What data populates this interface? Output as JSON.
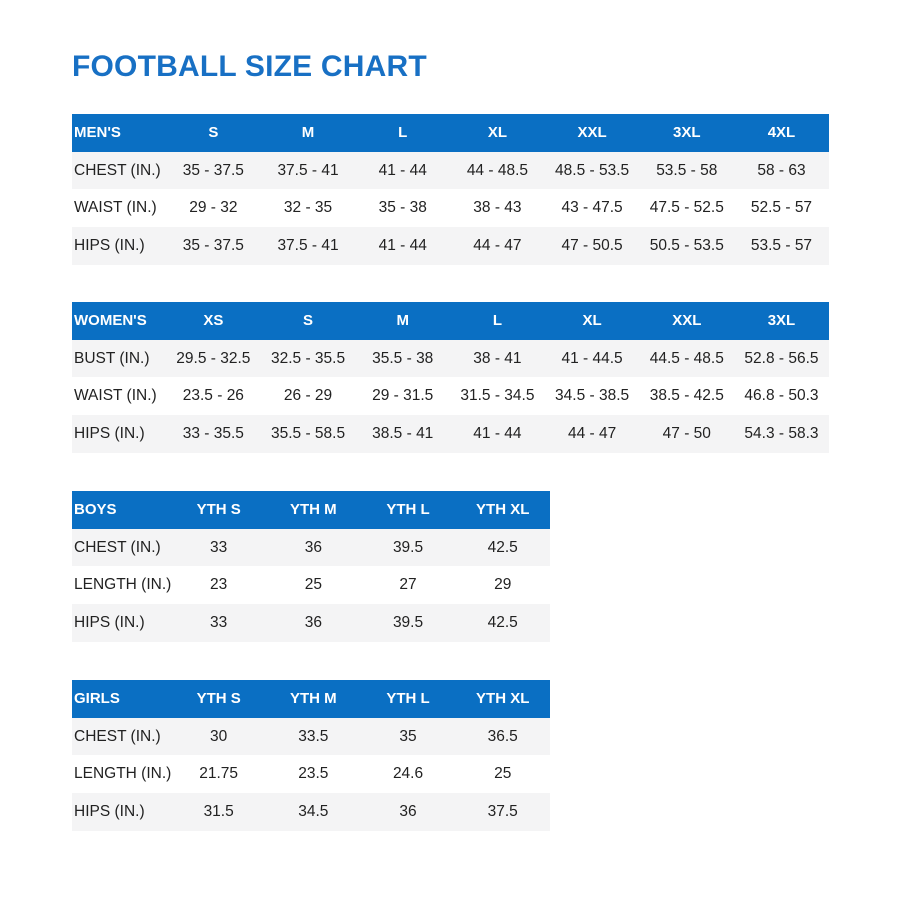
{
  "title": "FOOTBALL SIZE CHART",
  "colors": {
    "header_bg": "#0a6fc3",
    "title": "#1870c4",
    "row_shade": "#f4f4f5"
  },
  "tables": [
    {
      "header": [
        "MEN'S",
        "S",
        "M",
        "L",
        "XL",
        "XXL",
        "3XL",
        "4XL"
      ],
      "rows": [
        [
          "CHEST (IN.)",
          "35 - 37.5",
          "37.5 - 41",
          "41 - 44",
          "44 - 48.5",
          "48.5 - 53.5",
          "53.5 - 58",
          "58 - 63"
        ],
        [
          "WAIST (IN.)",
          "29 - 32",
          "32 - 35",
          "35 - 38",
          "38 - 43",
          "43 - 47.5",
          "47.5 - 52.5",
          "52.5 - 57"
        ],
        [
          "HIPS (IN.)",
          "35 - 37.5",
          "37.5 - 41",
          "41 - 44",
          "44 - 47",
          "47 - 50.5",
          "50.5 - 53.5",
          "53.5 - 57"
        ]
      ]
    },
    {
      "header": [
        "WOMEN'S",
        "XS",
        "S",
        "M",
        "L",
        "XL",
        "XXL",
        "3XL"
      ],
      "rows": [
        [
          "BUST (IN.)",
          "29.5 - 32.5",
          "32.5 - 35.5",
          "35.5 - 38",
          "38 - 41",
          "41 - 44.5",
          "44.5 - 48.5",
          "52.8 - 56.5"
        ],
        [
          "WAIST (IN.)",
          "23.5 - 26",
          "26 - 29",
          "29 - 31.5",
          "31.5 - 34.5",
          "34.5 - 38.5",
          "38.5 - 42.5",
          "46.8 - 50.3"
        ],
        [
          "HIPS (IN.)",
          "33 - 35.5",
          "35.5 - 58.5",
          "38.5 - 41",
          "41 - 44",
          "44 - 47",
          "47 - 50",
          "54.3 - 58.3"
        ]
      ]
    },
    {
      "header": [
        "BOYS",
        "YTH S",
        "YTH M",
        "YTH L",
        "YTH XL"
      ],
      "rows": [
        [
          "CHEST (IN.)",
          "33",
          "36",
          "39.5",
          "42.5"
        ],
        [
          "LENGTH (IN.)",
          "23",
          "25",
          "27",
          "29"
        ],
        [
          "HIPS (IN.)",
          "33",
          "36",
          "39.5",
          "42.5"
        ]
      ]
    },
    {
      "header": [
        "GIRLS",
        "YTH S",
        "YTH M",
        "YTH L",
        "YTH XL"
      ],
      "rows": [
        [
          "CHEST (IN.)",
          "30",
          "33.5",
          "35",
          "36.5"
        ],
        [
          "LENGTH (IN.)",
          "21.75",
          "23.5",
          "24.6",
          "25"
        ],
        [
          "HIPS (IN.)",
          "31.5",
          "34.5",
          "36",
          "37.5"
        ]
      ]
    }
  ]
}
